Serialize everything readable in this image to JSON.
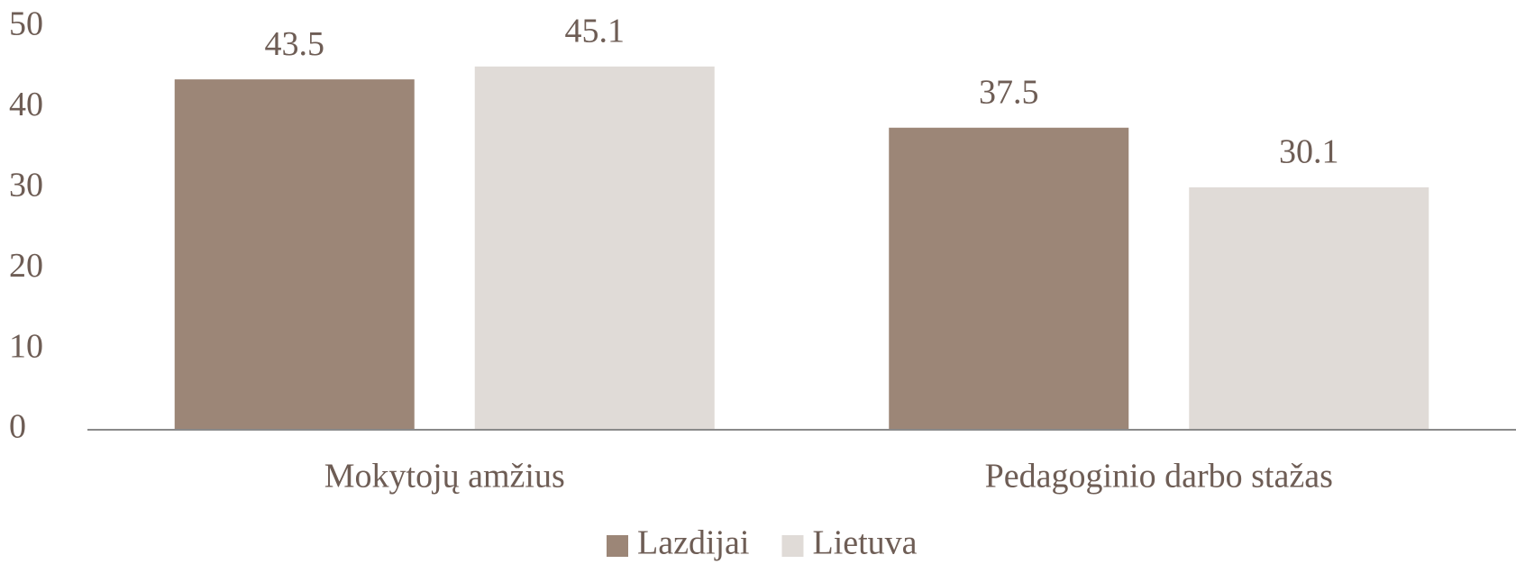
{
  "chart_data": {
    "type": "bar",
    "categories": [
      "Mokytojų amžius",
      "Pedagoginio darbo stažas"
    ],
    "series": [
      {
        "name": "Lazdijai",
        "color": "#9c8677",
        "values": [
          43.5,
          37.5
        ]
      },
      {
        "name": "Lietuva",
        "color": "#e0dbd7",
        "values": [
          45.1,
          30.1
        ]
      }
    ],
    "ylim": [
      0,
      50
    ],
    "yticks": [
      0,
      10,
      20,
      30,
      40,
      50
    ],
    "grid": false,
    "legend": "bottom"
  }
}
